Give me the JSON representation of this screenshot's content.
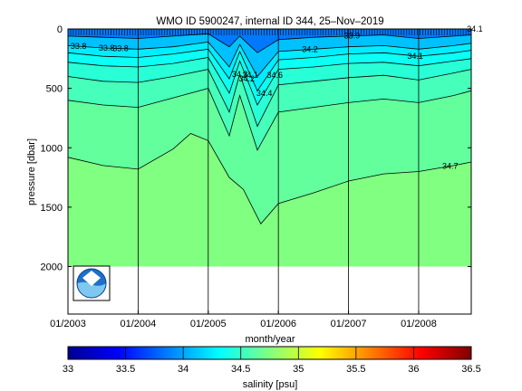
{
  "chart_data": {
    "type": "heatmap",
    "title": "WMO ID 5900247, internal ID 344, 25–Nov–2019",
    "xlabel": "month/year",
    "ylabel": "pressure [dbar]",
    "xlim": [
      "2003-01-01",
      "2008-10-01"
    ],
    "ylim": [
      2400,
      0
    ],
    "x_ticks": [
      {
        "date": "2003-01-01",
        "label": "01/2003"
      },
      {
        "date": "2004-01-01",
        "label": "01/2004"
      },
      {
        "date": "2005-01-01",
        "label": "01/2005"
      },
      {
        "date": "2006-01-01",
        "label": "01/2006"
      },
      {
        "date": "2007-01-01",
        "label": "01/2007"
      },
      {
        "date": "2008-01-01",
        "label": "01/2008"
      }
    ],
    "y_ticks": [
      0,
      500,
      1000,
      1500,
      2000
    ],
    "colorbar": {
      "label": "salinity [psu]",
      "range": [
        33,
        36.5
      ],
      "ticks": [
        "33",
        "33.5",
        "34",
        "34.5",
        "35",
        "35.5",
        "36",
        "36.5"
      ],
      "colors": [
        "#00008f",
        "#0000ff",
        "#0080ff",
        "#00ffff",
        "#80ff80",
        "#ffff00",
        "#ff8000",
        "#ff0000",
        "#800000"
      ]
    },
    "contour_labels": [
      "33.8",
      "33.8",
      "33.8",
      "34.1",
      "34.1",
      "34.2",
      "34.4",
      "34.6",
      "34.3",
      "34.2",
      "33.9",
      "34.1",
      "34.7"
    ],
    "series": [
      {
        "level": 34.0,
        "values": [
          [
            2003.0,
            60
          ],
          [
            2003.5,
            70
          ],
          [
            2004.0,
            80
          ],
          [
            2004.5,
            60
          ],
          [
            2005.0,
            40
          ],
          [
            2005.3,
            150
          ],
          [
            2005.45,
            60
          ],
          [
            2005.7,
            200
          ],
          [
            2006.0,
            90
          ],
          [
            2006.5,
            70
          ],
          [
            2007.0,
            60
          ],
          [
            2007.5,
            50
          ],
          [
            2008.0,
            80
          ],
          [
            2008.5,
            60
          ],
          [
            2008.75,
            50
          ]
        ]
      },
      {
        "level": 34.2,
        "values": [
          [
            2003.0,
            140
          ],
          [
            2003.5,
            160
          ],
          [
            2004.0,
            170
          ],
          [
            2004.5,
            150
          ],
          [
            2005.0,
            110
          ],
          [
            2005.3,
            320
          ],
          [
            2005.45,
            130
          ],
          [
            2005.7,
            400
          ],
          [
            2006.0,
            190
          ],
          [
            2006.5,
            170
          ],
          [
            2007.0,
            150
          ],
          [
            2007.5,
            140
          ],
          [
            2008.0,
            170
          ],
          [
            2008.5,
            140
          ],
          [
            2008.75,
            120
          ]
        ]
      },
      {
        "level": 34.3,
        "values": [
          [
            2003.0,
            200
          ],
          [
            2003.5,
            230
          ],
          [
            2004.0,
            240
          ],
          [
            2004.5,
            210
          ],
          [
            2005.0,
            170
          ],
          [
            2005.3,
            420
          ],
          [
            2005.45,
            190
          ],
          [
            2005.7,
            520
          ],
          [
            2006.0,
            260
          ],
          [
            2006.5,
            240
          ],
          [
            2007.0,
            210
          ],
          [
            2007.5,
            200
          ],
          [
            2008.0,
            230
          ],
          [
            2008.5,
            200
          ],
          [
            2008.75,
            180
          ]
        ]
      },
      {
        "level": 34.4,
        "values": [
          [
            2003.0,
            280
          ],
          [
            2003.5,
            310
          ],
          [
            2004.0,
            320
          ],
          [
            2004.5,
            290
          ],
          [
            2005.0,
            240
          ],
          [
            2005.3,
            540
          ],
          [
            2005.45,
            270
          ],
          [
            2005.7,
            640
          ],
          [
            2006.0,
            340
          ],
          [
            2006.5,
            320
          ],
          [
            2007.0,
            290
          ],
          [
            2007.5,
            280
          ],
          [
            2008.0,
            310
          ],
          [
            2008.5,
            270
          ],
          [
            2008.75,
            250
          ]
        ]
      },
      {
        "level": 34.5,
        "values": [
          [
            2003.0,
            400
          ],
          [
            2003.5,
            440
          ],
          [
            2004.0,
            450
          ],
          [
            2004.5,
            400
          ],
          [
            2005.0,
            340
          ],
          [
            2005.3,
            700
          ],
          [
            2005.45,
            380
          ],
          [
            2005.7,
            820
          ],
          [
            2006.0,
            470
          ],
          [
            2006.5,
            440
          ],
          [
            2007.0,
            410
          ],
          [
            2007.5,
            390
          ],
          [
            2008.0,
            430
          ],
          [
            2008.5,
            370
          ],
          [
            2008.75,
            340
          ]
        ]
      },
      {
        "level": 34.6,
        "values": [
          [
            2003.0,
            600
          ],
          [
            2003.5,
            640
          ],
          [
            2004.0,
            660
          ],
          [
            2004.5,
            580
          ],
          [
            2005.0,
            500
          ],
          [
            2005.3,
            900
          ],
          [
            2005.45,
            560
          ],
          [
            2005.7,
            1020
          ],
          [
            2006.0,
            700
          ],
          [
            2006.5,
            660
          ],
          [
            2007.0,
            620
          ],
          [
            2007.5,
            590
          ],
          [
            2008.0,
            620
          ],
          [
            2008.5,
            560
          ],
          [
            2008.75,
            520
          ]
        ]
      },
      {
        "level": 34.7,
        "values": [
          [
            2003.0,
            1080
          ],
          [
            2003.5,
            1150
          ],
          [
            2004.0,
            1180
          ],
          [
            2004.5,
            1010
          ],
          [
            2004.75,
            880
          ],
          [
            2005.0,
            940
          ],
          [
            2005.3,
            1250
          ],
          [
            2005.5,
            1350
          ],
          [
            2005.75,
            1640
          ],
          [
            2006.0,
            1470
          ],
          [
            2006.5,
            1380
          ],
          [
            2007.0,
            1280
          ],
          [
            2007.5,
            1220
          ],
          [
            2008.0,
            1200
          ],
          [
            2008.5,
            1150
          ],
          [
            2008.75,
            1120
          ]
        ]
      }
    ],
    "data_extent": {
      "x_start": "2003-01-01",
      "x_end": "2008-10-01",
      "max_pressure": 2000
    }
  }
}
